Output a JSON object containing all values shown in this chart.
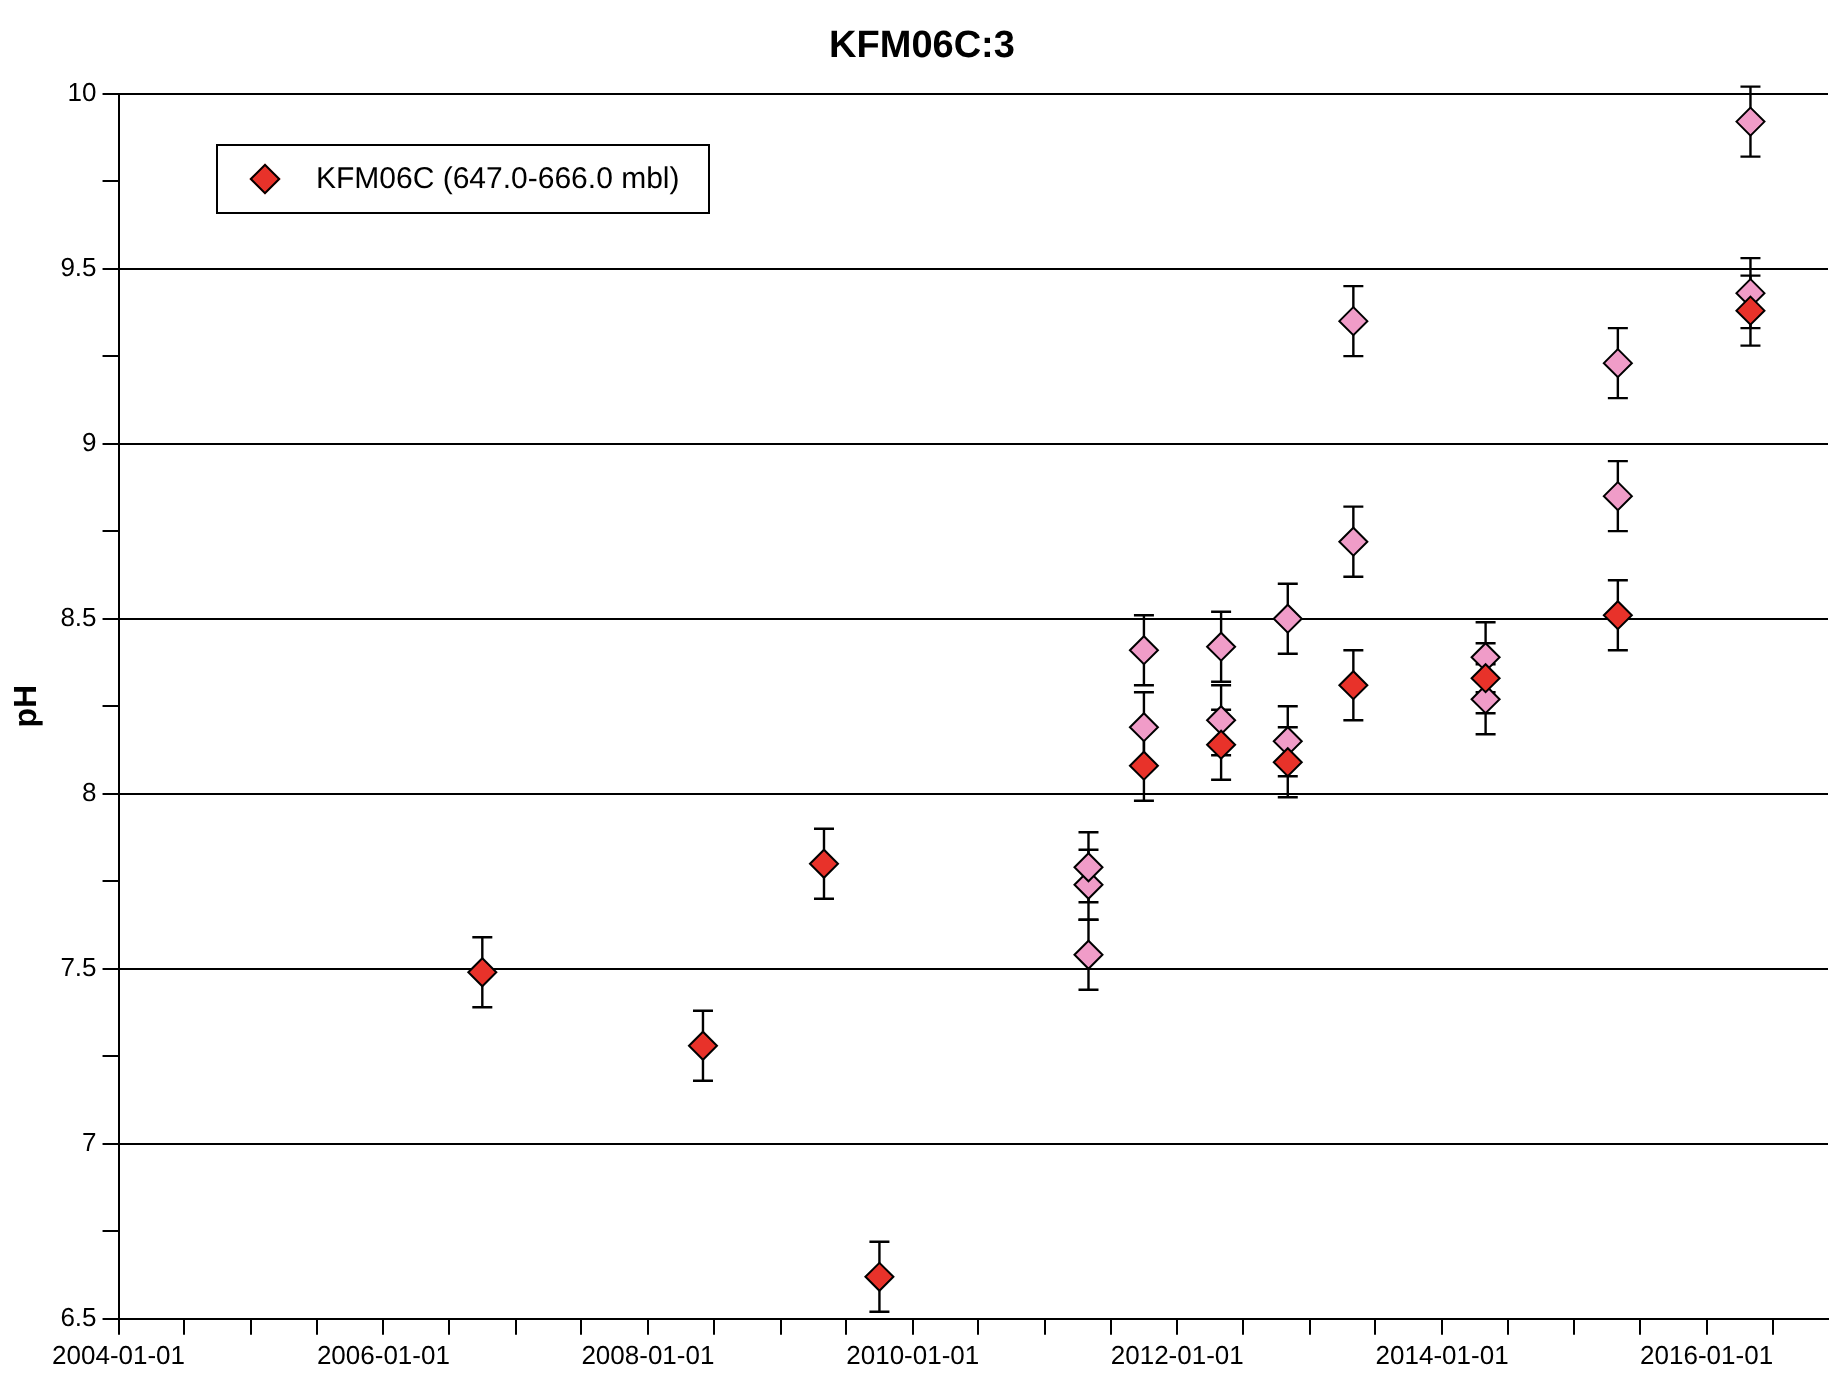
{
  "chart_data": {
    "type": "scatter",
    "title": "KFM06C:3",
    "ylabel": "pH",
    "marker": "diamond",
    "grid": "y",
    "legend": "top left",
    "xlim": [
      "2004-01-01",
      "2016-12-01"
    ],
    "xticks": [
      {
        "value": "2004-01-01",
        "label": "2004-01-01"
      },
      {
        "value": "2004-07-01",
        "label": null
      },
      {
        "value": "2005-01-01",
        "label": null
      },
      {
        "value": "2005-07-01",
        "label": null
      },
      {
        "value": "2006-01-01",
        "label": "2006-01-01"
      },
      {
        "value": "2006-07-01",
        "label": null
      },
      {
        "value": "2007-01-01",
        "label": null
      },
      {
        "value": "2007-07-01",
        "label": null
      },
      {
        "value": "2008-01-01",
        "label": "2008-01-01"
      },
      {
        "value": "2008-07-01",
        "label": null
      },
      {
        "value": "2009-01-01",
        "label": null
      },
      {
        "value": "2009-07-01",
        "label": null
      },
      {
        "value": "2010-01-01",
        "label": "2010-01-01"
      },
      {
        "value": "2010-07-01",
        "label": null
      },
      {
        "value": "2011-01-01",
        "label": null
      },
      {
        "value": "2011-07-01",
        "label": null
      },
      {
        "value": "2012-01-01",
        "label": "2012-01-01"
      },
      {
        "value": "2012-07-01",
        "label": null
      },
      {
        "value": "2013-01-01",
        "label": null
      },
      {
        "value": "2013-07-01",
        "label": null
      },
      {
        "value": "2014-01-01",
        "label": "2014-01-01"
      },
      {
        "value": "2014-07-01",
        "label": null
      },
      {
        "value": "2015-01-01",
        "label": null
      },
      {
        "value": "2015-07-01",
        "label": null
      },
      {
        "value": "2016-01-01",
        "label": "2016-01-01"
      },
      {
        "value": "2016-07-01",
        "label": null
      }
    ],
    "ylim": [
      6.5,
      10
    ],
    "yticks": [
      6.5,
      {
        "value": 6.75,
        "label": null
      },
      7,
      {
        "value": 7.25,
        "label": null
      },
      7.5,
      {
        "value": 7.75,
        "label": null
      },
      8,
      {
        "value": 8.25,
        "label": null
      },
      8.5,
      {
        "value": 8.75,
        "label": null
      },
      9,
      {
        "value": 9.25,
        "label": null
      },
      9.5,
      {
        "value": 9.75,
        "label": null
      },
      10
    ],
    "series": [
      {
        "name": "KFM06C (647.0-666.0 mbl)",
        "color": "#e8322a",
        "x": [
          "2006-10-01",
          "2008-06-01",
          "2009-05-01",
          "2009-10-01",
          "2011-10-01",
          "2012-05-01",
          "2012-11-01",
          "2013-05-01",
          "2014-05-01",
          "2015-05-01",
          "2016-05-01"
        ],
        "values": [
          7.49,
          7.28,
          7.8,
          6.62,
          8.08,
          8.14,
          8.09,
          8.31,
          8.33,
          8.51,
          9.38
        ],
        "errors": [
          0.1,
          0.1,
          0.1,
          0.1,
          0.1,
          0.1,
          0.1,
          0.1,
          0.1,
          0.1,
          0.1
        ]
      },
      {
        "color": "#f09cc8",
        "x": [
          "2011-05-01",
          "2011-05-01",
          "2011-05-01",
          "2011-10-01",
          "2011-10-01",
          "2012-05-01",
          "2012-05-01",
          "2012-11-01",
          "2012-11-01",
          "2013-05-01",
          "2013-05-01",
          "2014-05-01",
          "2014-05-01",
          "2015-05-01",
          "2015-05-01",
          "2016-05-01",
          "2016-05-01"
        ],
        "values": [
          7.54,
          7.74,
          7.79,
          8.19,
          8.41,
          8.42,
          8.21,
          8.5,
          8.15,
          9.35,
          8.72,
          8.39,
          8.27,
          9.23,
          8.85,
          9.92,
          9.43
        ],
        "errors": [
          0.1,
          0.1,
          0.1,
          0.1,
          0.1,
          0.1,
          0.1,
          0.1,
          0.1,
          0.1,
          0.1,
          0.1,
          0.1,
          0.1,
          0.1,
          0.1,
          0.1
        ]
      }
    ]
  }
}
